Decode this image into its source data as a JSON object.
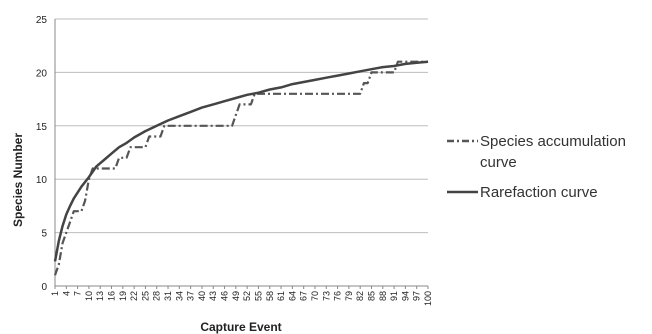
{
  "chart_data": {
    "type": "line",
    "xlabel": "Capture Event",
    "ylabel": "Species Number",
    "ylim": [
      0,
      25
    ],
    "yticks": [
      "0",
      "5",
      "10",
      "15",
      "20",
      "25"
    ],
    "x_tick_labels": [
      "1",
      "4",
      "7",
      "10",
      "13",
      "16",
      "19",
      "22",
      "25",
      "28",
      "31",
      "34",
      "37",
      "40",
      "43",
      "46",
      "49",
      "52",
      "55",
      "58",
      "61",
      "64",
      "67",
      "70",
      "73",
      "76",
      "79",
      "82",
      "85",
      "88",
      "91",
      "94",
      "97",
      "100"
    ],
    "grid": "horizontal",
    "legend_position": "right",
    "series": [
      {
        "name": "Species accumulation curve",
        "style": "dash-dot",
        "color": "#555555",
        "x": [
          1,
          2,
          3,
          4,
          5,
          6,
          7,
          8,
          9,
          10,
          11,
          12,
          14,
          16,
          17,
          18,
          19,
          20,
          21,
          22,
          25,
          26,
          27,
          28,
          29,
          30,
          31,
          32,
          48,
          49,
          50,
          52,
          53,
          54,
          55,
          56,
          82,
          83,
          84,
          85,
          86,
          87,
          90,
          91,
          92,
          93,
          94,
          95,
          96,
          100
        ],
        "y": [
          1,
          2,
          4,
          5,
          6,
          7,
          7,
          7,
          8,
          10,
          11,
          11,
          11,
          11,
          11,
          12,
          12,
          12,
          13,
          13,
          13,
          14,
          14,
          14,
          14,
          15,
          15,
          15,
          15,
          16,
          17,
          17,
          17,
          18,
          18,
          18,
          18,
          19,
          19,
          20,
          20,
          20,
          20,
          20,
          21,
          21,
          21,
          21,
          21,
          21
        ]
      },
      {
        "name": "Rarefaction curve",
        "style": "solid",
        "color": "#444444",
        "x": [
          1,
          2,
          3,
          4,
          5,
          6,
          8,
          10,
          12,
          14,
          16,
          18,
          20,
          22,
          25,
          28,
          31,
          34,
          37,
          40,
          43,
          46,
          49,
          52,
          55,
          58,
          61,
          64,
          67,
          70,
          73,
          76,
          79,
          82,
          85,
          88,
          91,
          94,
          97,
          100
        ],
        "y": [
          2.3,
          4.2,
          5.6,
          6.7,
          7.5,
          8.2,
          9.3,
          10.2,
          11.2,
          11.8,
          12.4,
          13.0,
          13.4,
          13.9,
          14.5,
          15.0,
          15.5,
          15.9,
          16.3,
          16.7,
          17.0,
          17.3,
          17.6,
          17.9,
          18.1,
          18.4,
          18.6,
          18.9,
          19.1,
          19.3,
          19.5,
          19.7,
          19.9,
          20.1,
          20.3,
          20.5,
          20.6,
          20.8,
          20.9,
          21.0
        ]
      }
    ]
  }
}
